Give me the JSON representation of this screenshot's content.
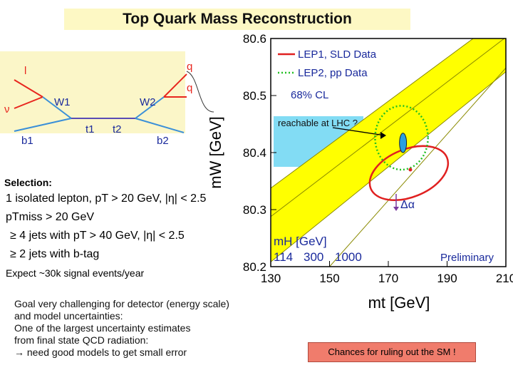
{
  "slide": {
    "title": "Top Quark Mass Reconstruction"
  },
  "feynman": {
    "labels": [
      "l",
      "ν",
      "W1",
      "W2",
      "q",
      "q",
      "b1",
      "t1",
      "t2",
      "b2"
    ]
  },
  "selection": {
    "label": "Selection:",
    "lines": [
      "1 isolated lepton, pT > 20 GeV, |η| < 2.5",
      "pTmiss > 20 GeV",
      "≥ 4 jets with pT > 40 GeV, |η| < 2.5",
      "≥ 2 jets with b-tag"
    ],
    "expect": "Expect ~30k signal events/year"
  },
  "goal": {
    "lines": [
      "Goal very challenging for detector (energy scale)",
      "and model uncertainties:",
      "One of the largest uncertainty estimates",
      "from final state QCD radiation:",
      "→ need good models to get small error"
    ]
  },
  "callouts": {
    "lhc": "reachable at LHC ?",
    "chances": "Chances for ruling out the SM !"
  },
  "chart_data": {
    "type": "scatter",
    "title": "",
    "xlabel": "mt [GeV]",
    "ylabel": "mW [GeV]",
    "xlim": [
      130,
      210
    ],
    "ylim": [
      80.2,
      80.6
    ],
    "x_ticks": [
      130,
      150,
      170,
      190,
      210
    ],
    "y_ticks": [
      80.2,
      80.3,
      80.4,
      80.5,
      80.6
    ],
    "legend": [
      "LEP1, SLD Data",
      "LEP2, pp Data",
      "68% CL"
    ],
    "band_label": "mH [GeV]",
    "band_values": [
      "114",
      "300",
      "1000"
    ],
    "annotation_alpha": "Δα",
    "preliminary": "Preliminary",
    "series": [
      {
        "name": "LEP1, SLD Data",
        "style": "solid",
        "color": "#e02020",
        "center": [
          177,
          80.364
        ],
        "semi_x": 14,
        "semi_y": 0.042,
        "tilt_deg": -22
      },
      {
        "name": "LEP2, pp Data",
        "style": "dotted",
        "color": "#22c022",
        "center": [
          174.5,
          80.426
        ],
        "semi_x": 9,
        "semi_y": 0.056,
        "tilt_deg": 0
      },
      {
        "name": "LHC projection",
        "style": "filled",
        "color": "#2a9fe0",
        "center": [
          175,
          80.417
        ],
        "semi_x": 1.2,
        "semi_y": 0.017,
        "tilt_deg": 0
      }
    ],
    "colors": {
      "band_fill": "#ffff00",
      "band_edge": "#8a8a00",
      "lep1": "#e02020",
      "lep2": "#22c022",
      "lhc": "#2a9fe0",
      "text_blue": "#1a2a9c"
    }
  }
}
